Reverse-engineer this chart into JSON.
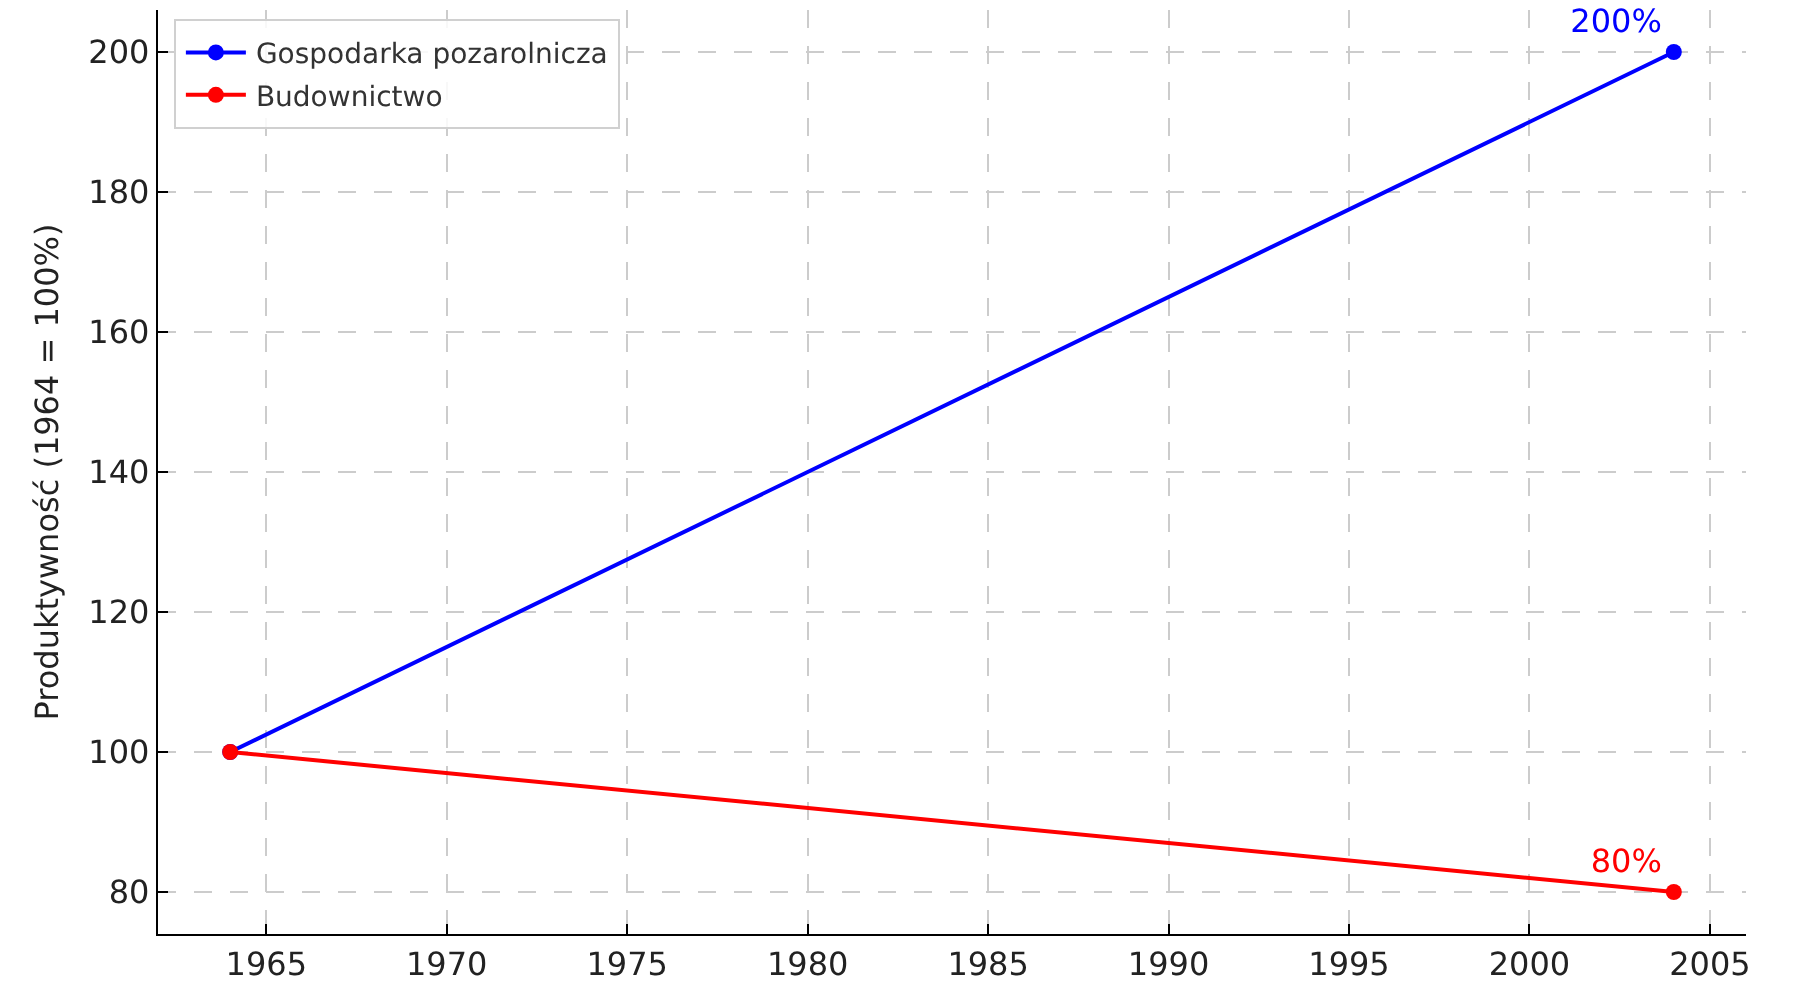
{
  "chart_data": {
    "type": "line",
    "x": [
      1964,
      2004
    ],
    "ylabel": "Produktywność (1964 = 100%)",
    "series": [
      {
        "name": "Gospodarka pozarolnicza",
        "color": "#0000ff",
        "values": [
          100,
          200
        ],
        "value_labels": [
          null,
          "200%"
        ]
      },
      {
        "name": "Budownictwo",
        "color": "#ff0000",
        "values": [
          100,
          80
        ],
        "value_labels": [
          null,
          "80%"
        ]
      }
    ],
    "xlim": [
      1962,
      2006
    ],
    "ylim": [
      74,
      206
    ],
    "xticks": [
      1965,
      1970,
      1975,
      1980,
      1985,
      1990,
      1995,
      2000,
      2005
    ],
    "yticks": [
      80,
      100,
      120,
      140,
      160,
      180,
      200
    ],
    "grid": true,
    "legend": "top left",
    "marker": "circle",
    "line_style": "solid"
  }
}
